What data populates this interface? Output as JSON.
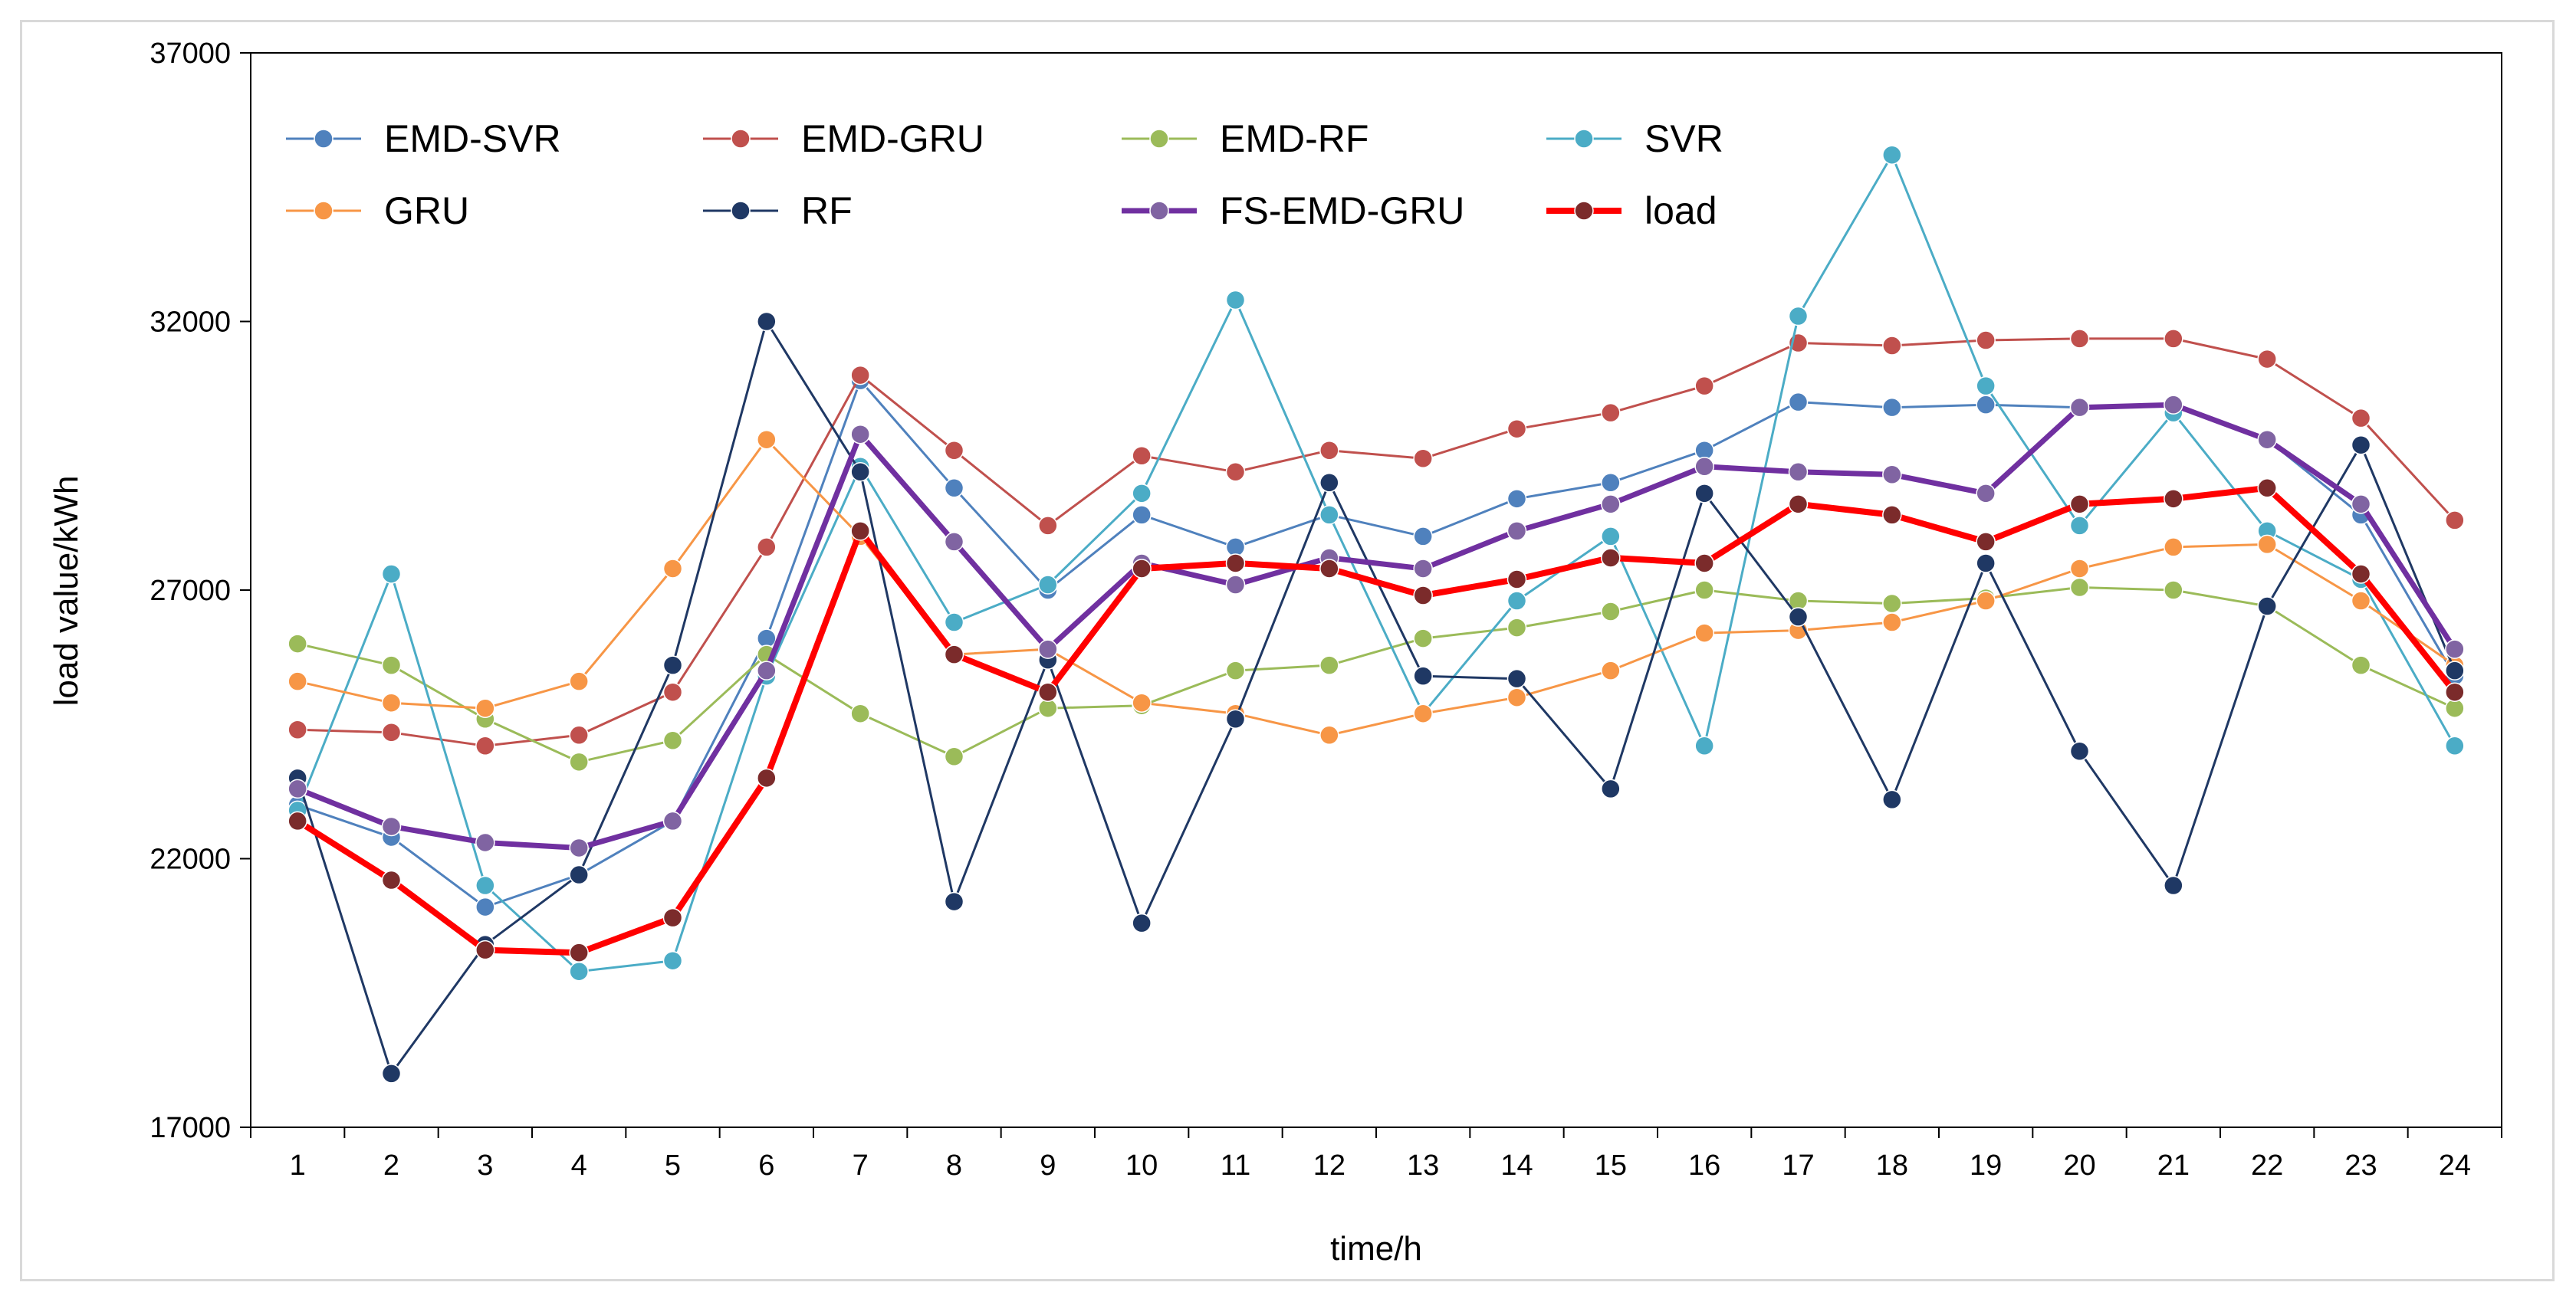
{
  "chart_data": {
    "type": "line",
    "xlabel": "time/h",
    "ylabel": "load value/kWh",
    "ylim": [
      17000,
      37000
    ],
    "yticks": [
      17000,
      22000,
      27000,
      32000,
      37000
    ],
    "x": [
      1,
      2,
      3,
      4,
      5,
      6,
      7,
      8,
      9,
      10,
      11,
      12,
      13,
      14,
      15,
      16,
      17,
      18,
      19,
      20,
      21,
      22,
      23,
      24
    ],
    "grid": false,
    "legend": "top-left",
    "series": [
      {
        "name": "EMD-SVR",
        "color": "#4f81bd",
        "width": 3,
        "values": [
          23000,
          22400,
          21100,
          21700,
          22700,
          26100,
          30900,
          28900,
          27000,
          28400,
          27800,
          28400,
          28000,
          28700,
          29000,
          29600,
          30500,
          30400,
          30450,
          30400,
          30450,
          29800,
          28400,
          25400
        ]
      },
      {
        "name": "EMD-GRU",
        "color": "#c0504d",
        "width": 3,
        "values": [
          24400,
          24350,
          24100,
          24300,
          25100,
          27800,
          31000,
          29600,
          28200,
          29500,
          29200,
          29600,
          29450,
          30000,
          30300,
          30800,
          31600,
          31550,
          31650,
          31680,
          31680,
          31300,
          30200,
          28300
        ]
      },
      {
        "name": "EMD-RF",
        "color": "#9bbb59",
        "width": 3,
        "values": [
          26000,
          25600,
          24600,
          23800,
          24200,
          25800,
          24700,
          23900,
          24800,
          24850,
          25500,
          25600,
          26100,
          26300,
          26600,
          27000,
          26800,
          26750,
          26850,
          27050,
          27000,
          26700,
          25600,
          24800
        ]
      },
      {
        "name": "SVR",
        "color": "#4bacc6",
        "width": 3,
        "values": [
          22900,
          27300,
          21500,
          19900,
          20100,
          25400,
          29300,
          26400,
          27100,
          28800,
          32400,
          28400,
          24700,
          26800,
          28000,
          24100,
          32100,
          35100,
          30800,
          28200,
          30300,
          28100,
          27200,
          24100
        ]
      },
      {
        "name": "GRU",
        "color": "#f79646",
        "width": 3,
        "values": [
          25300,
          24900,
          24800,
          25300,
          27400,
          29800,
          28000,
          25800,
          25900,
          24900,
          24700,
          24300,
          24700,
          25000,
          25500,
          26200,
          26250,
          26400,
          26800,
          27400,
          27800,
          27850,
          26800,
          25600
        ]
      },
      {
        "name": "RF",
        "color": "#1f3864",
        "width": 3,
        "values": [
          23500,
          18000,
          20400,
          21700,
          25600,
          32000,
          29200,
          21200,
          25700,
          20800,
          24600,
          29000,
          25400,
          25350,
          23300,
          28800,
          26500,
          23100,
          27500,
          24000,
          21500,
          26700,
          29700,
          25500
        ]
      },
      {
        "name": "FS-EMD-GRU",
        "color": "#7030a0",
        "width": 7,
        "marker": "#8064a2",
        "values": [
          23300,
          22600,
          22300,
          22200,
          22700,
          25500,
          29900,
          27900,
          25900,
          27500,
          27100,
          27600,
          27400,
          28100,
          28600,
          29300,
          29200,
          29150,
          28800,
          30400,
          30450,
          29800,
          28600,
          25900
        ]
      },
      {
        "name": "load",
        "color": "#ff0000",
        "width": 8,
        "marker": "#7b2b2b",
        "values": [
          22700,
          21600,
          20300,
          20250,
          20900,
          23500,
          28100,
          25800,
          25100,
          27400,
          27500,
          27400,
          26900,
          27200,
          27600,
          27500,
          28600,
          28400,
          27900,
          28600,
          28700,
          28900,
          27300,
          25100
        ]
      }
    ]
  }
}
